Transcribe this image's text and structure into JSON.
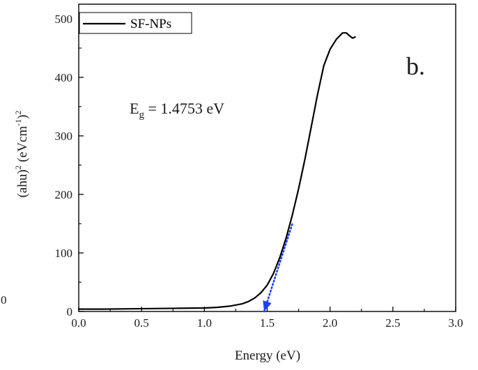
{
  "chart_data": {
    "type": "line",
    "title": "",
    "panel_label": "b.",
    "xlabel": "Energy (eV)",
    "ylabel_parts": {
      "base": "(ahu)",
      "sq1": "2",
      "unit_open": " (eVcm",
      "exp": "-1",
      "unit_close": ")",
      "sq2": "2"
    },
    "xlim": [
      0.0,
      3.0
    ],
    "ylim": [
      0,
      525
    ],
    "x_ticks": [
      0.0,
      0.5,
      1.0,
      1.5,
      2.0,
      2.5,
      3.0
    ],
    "x_tick_labels": [
      "0.0",
      "0.5",
      "1.0",
      "1.5",
      "2.0",
      "2.5",
      "3.0"
    ],
    "y_ticks": [
      0,
      100,
      200,
      300,
      400,
      500
    ],
    "y_tick_labels": [
      "0",
      "100",
      "200",
      "300",
      "400",
      "500"
    ],
    "stray_label": "0",
    "legend": {
      "position": "top-left",
      "entries": [
        "SF-NPs"
      ]
    },
    "annotation": {
      "symbol": "E",
      "subscript": "g",
      "text": " = 1.4753 eV"
    },
    "series": [
      {
        "name": "SF-NPs",
        "color": "#000000",
        "x": [
          0.0,
          0.2,
          0.4,
          0.6,
          0.8,
          1.0,
          1.1,
          1.2,
          1.3,
          1.35,
          1.4,
          1.45,
          1.5,
          1.55,
          1.6,
          1.65,
          1.7,
          1.75,
          1.8,
          1.85,
          1.9,
          1.95,
          2.0,
          2.05,
          2.1,
          2.13,
          2.16,
          2.18,
          2.2
        ],
        "y": [
          4,
          4,
          4.5,
          5,
          5.5,
          6,
          7,
          9,
          13,
          17,
          23,
          32,
          45,
          65,
          92,
          125,
          165,
          210,
          260,
          315,
          370,
          420,
          448,
          465,
          476,
          476,
          470,
          467,
          469
        ]
      },
      {
        "name": "",
        "style": "dotted",
        "color": "#1f3fff",
        "x": [
          1.4753,
          1.7
        ],
        "y": [
          0,
          150
        ]
      }
    ]
  }
}
